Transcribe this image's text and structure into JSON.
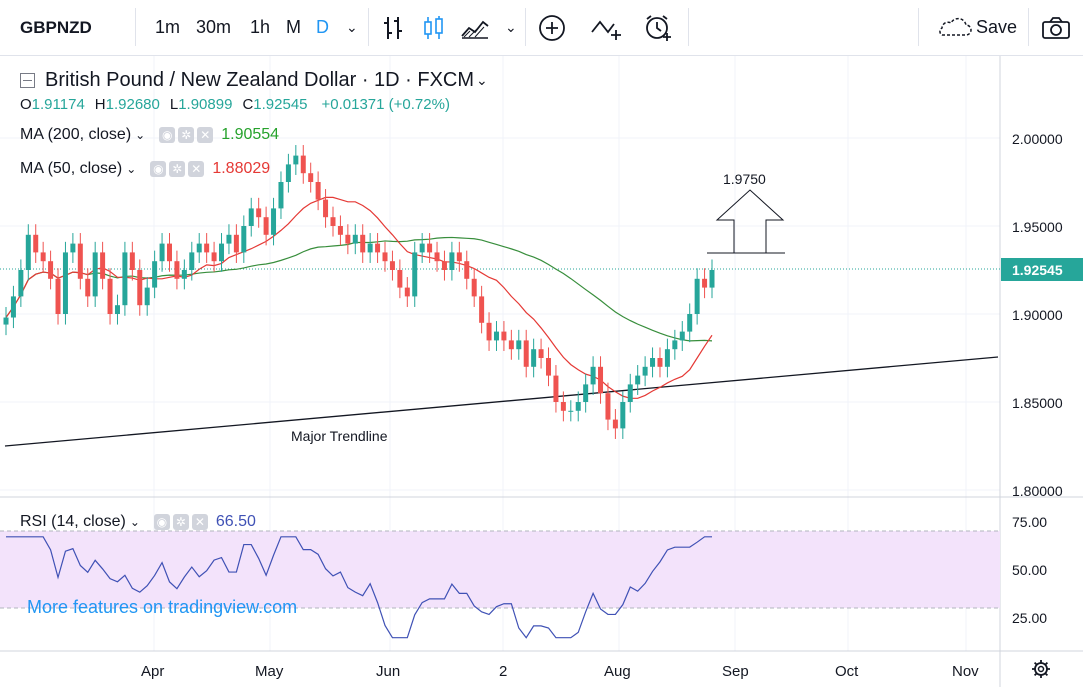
{
  "toolbar": {
    "symbol": "GBPNZD",
    "intervals": [
      "1m",
      "30m",
      "1h",
      "M",
      "D"
    ],
    "active_interval": "D",
    "save_label": "Save"
  },
  "header": {
    "title": "British Pound / New Zealand Dollar · 1D · FXCM",
    "ohlc": {
      "o_label": "O",
      "o": "1.91174",
      "h_label": "H",
      "h": "1.92680",
      "l_label": "L",
      "l": "1.90899",
      "c_label": "C",
      "c": "1.92545",
      "change": "+0.01371 (+0.72%)"
    }
  },
  "indicators": {
    "ma200": {
      "label": "MA (200, close)",
      "value": "1.90554",
      "color": "#26a22c"
    },
    "ma50": {
      "label": "MA (50, close)",
      "value": "1.88029",
      "color": "#e53935"
    },
    "rsi": {
      "label": "RSI (14, close)",
      "value": "66.50",
      "color": "#3f51b5"
    }
  },
  "watermark": "More features on tradingview.com",
  "annotations": {
    "target": "1.9750",
    "trendline": "Major Trendline"
  },
  "colors": {
    "up": "#26a69a",
    "down": "#ef5350",
    "ma200": "#388e3c",
    "ma50": "#e53935",
    "rsi": "#3f51b5",
    "rsi_band": "#f3e3fb",
    "price_label_bg": "#26a69a"
  },
  "chart_data": {
    "type": "candlestick",
    "symbol": "GBPNZD",
    "x_ticks": [
      "Apr",
      "May",
      "Jun",
      "2",
      "Aug",
      "Sep",
      "Oct",
      "Nov"
    ],
    "price_ticks": [
      "2.00000",
      "1.95000",
      "1.90000",
      "1.85000",
      "1.80000"
    ],
    "price_range": [
      1.79,
      2.02
    ],
    "last_price": "1.92545",
    "rsi_ticks": [
      "75.00",
      "50.00",
      "25.00"
    ],
    "rsi_range": [
      10,
      86
    ],
    "close_path": [
      1.898,
      1.91,
      1.925,
      1.945,
      1.935,
      1.93,
      1.92,
      1.9,
      1.935,
      1.94,
      1.92,
      1.91,
      1.935,
      1.92,
      1.9,
      1.905,
      1.935,
      1.925,
      1.905,
      1.915,
      1.93,
      1.94,
      1.93,
      1.92,
      1.925,
      1.935,
      1.94,
      1.935,
      1.93,
      1.94,
      1.945,
      1.935,
      1.95,
      1.96,
      1.955,
      1.945,
      1.96,
      1.975,
      1.985,
      1.99,
      1.98,
      1.975,
      1.965,
      1.955,
      1.95,
      1.945,
      1.94,
      1.945,
      1.935,
      1.94,
      1.935,
      1.93,
      1.925,
      1.915,
      1.91,
      1.935,
      1.94,
      1.935,
      1.93,
      1.925,
      1.935,
      1.93,
      1.92,
      1.91,
      1.895,
      1.885,
      1.89,
      1.885,
      1.88,
      1.885,
      1.87,
      1.88,
      1.875,
      1.865,
      1.85,
      1.845,
      1.845,
      1.85,
      1.86,
      1.87,
      1.855,
      1.84,
      1.835,
      1.85,
      1.86,
      1.865,
      1.87,
      1.875,
      1.87,
      1.88,
      1.885,
      1.89,
      1.9,
      1.92,
      1.915,
      1.925
    ]
  }
}
